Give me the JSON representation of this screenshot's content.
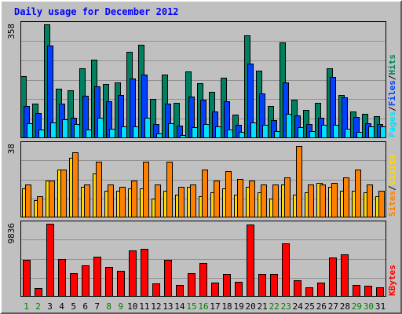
{
  "window": {
    "title": "Daily usage for December 2012",
    "colors": {
      "background": "#c0c0c0",
      "plot_background": "#c0c0c0",
      "gridline": "#909090",
      "title": "#0000ff",
      "weekend_label": "#008000",
      "weekday_label": "#000000"
    }
  },
  "chart_data": [
    {
      "type": "bar",
      "panel": "hits-files-pages",
      "x": [
        1,
        2,
        3,
        4,
        5,
        6,
        7,
        8,
        9,
        10,
        11,
        12,
        13,
        14,
        15,
        16,
        17,
        18,
        19,
        20,
        21,
        22,
        23,
        24,
        25,
        26,
        27,
        28,
        29,
        30,
        31
      ],
      "weekend_days": [
        1,
        2,
        8,
        9,
        15,
        16,
        22,
        23,
        29,
        30
      ],
      "y_max_label": "358",
      "ylim": [
        0,
        358
      ],
      "legend": [
        "Pages",
        "Files",
        "Hits"
      ],
      "legend_separator": "/",
      "grid": true,
      "series": [
        {
          "name": "Hits",
          "color": "#008060",
          "values": [
            194,
            108,
            358,
            156,
            150,
            219,
            248,
            170,
            176,
            271,
            294,
            124,
            201,
            112,
            210,
            173,
            146,
            190,
            74,
            324,
            213,
            101,
            300,
            121,
            88,
            112,
            220,
            137,
            83,
            76,
            68
          ]
        },
        {
          "name": "Files",
          "color": "#0040ff",
          "values": [
            101,
            79,
            291,
            109,
            63,
            133,
            164,
            115,
            136,
            187,
            200,
            45,
            109,
            39,
            131,
            122,
            83,
            116,
            42,
            235,
            140,
            58,
            175,
            72,
            45,
            65,
            193,
            129,
            67,
            47,
            44
          ]
        },
        {
          "name": "Pages",
          "color": "#00e0ff",
          "values": [
            46,
            27,
            50,
            59,
            45,
            27,
            65,
            30,
            37,
            37,
            65,
            15,
            46,
            11,
            34,
            44,
            37,
            28,
            20,
            49,
            42,
            22,
            77,
            35,
            23,
            41,
            43,
            29,
            20,
            36,
            37
          ]
        }
      ]
    },
    {
      "type": "bar",
      "panel": "visits-sites",
      "x": [
        1,
        2,
        3,
        4,
        5,
        6,
        7,
        8,
        9,
        10,
        11,
        12,
        13,
        14,
        15,
        16,
        17,
        18,
        19,
        20,
        21,
        22,
        23,
        24,
        25,
        26,
        27,
        28,
        29,
        30,
        31
      ],
      "y_max_label": "38",
      "ylim": [
        0,
        38
      ],
      "legend": [
        "Sites",
        "Visits"
      ],
      "legend_separator": "/",
      "grid": true,
      "series": [
        {
          "name": "Visits",
          "color": "#ffd800",
          "values": [
            15,
            9,
            19,
            25,
            31,
            16,
            23,
            14,
            14,
            15,
            15,
            10,
            14,
            12,
            16,
            11,
            13,
            15,
            12,
            16,
            13,
            10,
            17,
            12,
            13,
            18,
            16,
            14,
            14,
            13,
            11
          ]
        },
        {
          "name": "Sites",
          "color": "#ff8000",
          "values": [
            17,
            11,
            19,
            25,
            34,
            17,
            29,
            17,
            16,
            19,
            29,
            17,
            29,
            16,
            17,
            25,
            19,
            24,
            20,
            19,
            17,
            17,
            21,
            37,
            17,
            17,
            18,
            21,
            25,
            17,
            14
          ]
        }
      ]
    },
    {
      "type": "bar",
      "panel": "kbytes",
      "x": [
        1,
        2,
        3,
        4,
        5,
        6,
        7,
        8,
        9,
        10,
        11,
        12,
        13,
        14,
        15,
        16,
        17,
        18,
        19,
        20,
        21,
        22,
        23,
        24,
        25,
        26,
        27,
        28,
        29,
        30,
        31
      ],
      "y_max_label": "9836",
      "ylim": [
        0,
        9836
      ],
      "legend": [
        "KBytes"
      ],
      "legend_separator": "/",
      "grid": true,
      "series": [
        {
          "name": "KBytes",
          "color": "#ff0000",
          "values": [
            5000,
            1200,
            9836,
            5100,
            3200,
            4200,
            5400,
            4000,
            3500,
            6200,
            6400,
            1800,
            5000,
            1600,
            3200,
            4500,
            1900,
            3100,
            2000,
            9700,
            3100,
            3100,
            7200,
            2200,
            1300,
            1900,
            5300,
            5700,
            1600,
            1500,
            1300
          ]
        }
      ]
    }
  ]
}
